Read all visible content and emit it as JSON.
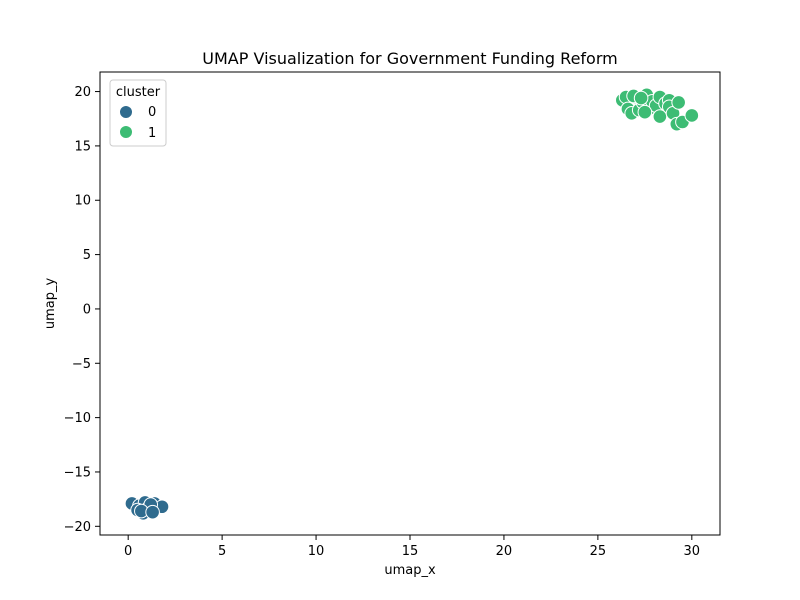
{
  "chart_data": {
    "type": "scatter",
    "title": "UMAP Visualization for Government Funding Reform",
    "xlabel": "umap_x",
    "ylabel": "umap_y",
    "xlim": [
      -1.5,
      31.5
    ],
    "ylim": [
      -20.8,
      21.8
    ],
    "xticks": [
      0,
      5,
      10,
      15,
      20,
      25,
      30
    ],
    "yticks": [
      -20,
      -15,
      -10,
      -5,
      0,
      5,
      10,
      15,
      20
    ],
    "xtick_labels": [
      "0",
      "5",
      "10",
      "15",
      "20",
      "25",
      "30"
    ],
    "ytick_labels": [
      "−20",
      "−15",
      "−10",
      "−5",
      "0",
      "5",
      "10",
      "15",
      "20"
    ],
    "grid": false,
    "legend": {
      "title": "cluster",
      "placement": "top-left",
      "entries": [
        {
          "label": "0",
          "color": "#2f6b8e"
        },
        {
          "label": "1",
          "color": "#3dbc74"
        }
      ]
    },
    "series": [
      {
        "name": "0",
        "color": "#2f6b8e",
        "points": [
          {
            "x": 0.2,
            "y": -17.9
          },
          {
            "x": 0.6,
            "y": -18.1
          },
          {
            "x": 0.9,
            "y": -17.8
          },
          {
            "x": 1.1,
            "y": -18.3
          },
          {
            "x": 0.5,
            "y": -18.5
          },
          {
            "x": 1.4,
            "y": -17.9
          },
          {
            "x": 1.0,
            "y": -18.6
          },
          {
            "x": 1.8,
            "y": -18.2
          },
          {
            "x": 0.8,
            "y": -18.8
          },
          {
            "x": 1.2,
            "y": -18.0
          },
          {
            "x": 0.7,
            "y": -18.6
          },
          {
            "x": 1.3,
            "y": -18.7
          }
        ]
      },
      {
        "name": "1",
        "color": "#3dbc74",
        "points": [
          {
            "x": 26.3,
            "y": 19.2
          },
          {
            "x": 26.5,
            "y": 19.5
          },
          {
            "x": 26.6,
            "y": 18.4
          },
          {
            "x": 26.8,
            "y": 18.0
          },
          {
            "x": 27.0,
            "y": 19.5
          },
          {
            "x": 27.2,
            "y": 18.3
          },
          {
            "x": 27.4,
            "y": 19.0
          },
          {
            "x": 27.6,
            "y": 19.7
          },
          {
            "x": 27.7,
            "y": 18.4
          },
          {
            "x": 27.9,
            "y": 19.1
          },
          {
            "x": 28.1,
            "y": 18.7
          },
          {
            "x": 28.3,
            "y": 19.5
          },
          {
            "x": 28.3,
            "y": 17.7
          },
          {
            "x": 28.6,
            "y": 18.9
          },
          {
            "x": 28.8,
            "y": 19.2
          },
          {
            "x": 28.8,
            "y": 18.6
          },
          {
            "x": 29.0,
            "y": 18.0
          },
          {
            "x": 29.2,
            "y": 17.0
          },
          {
            "x": 29.3,
            "y": 19.0
          },
          {
            "x": 29.5,
            "y": 17.2
          },
          {
            "x": 30.0,
            "y": 17.8
          },
          {
            "x": 26.9,
            "y": 19.6
          },
          {
            "x": 27.3,
            "y": 19.4
          },
          {
            "x": 27.5,
            "y": 18.1
          }
        ]
      }
    ]
  }
}
